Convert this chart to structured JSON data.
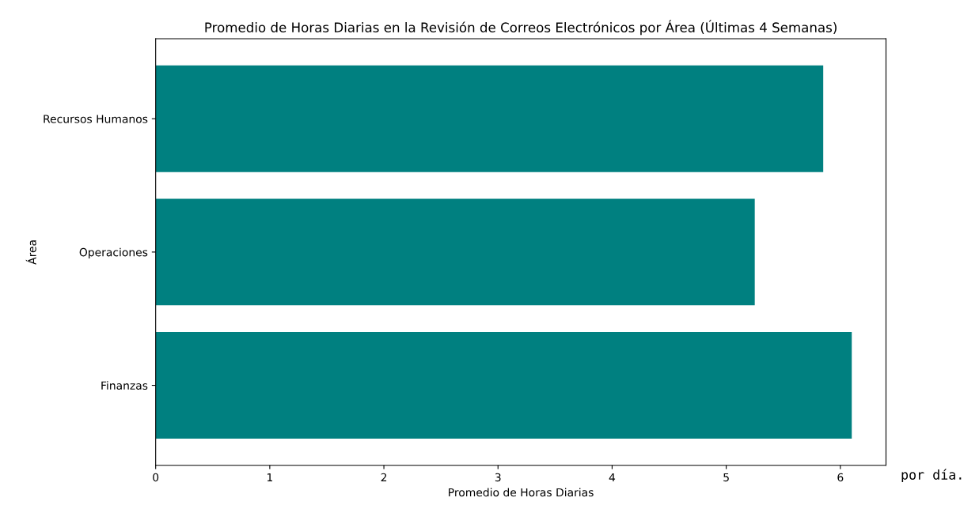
{
  "chart_data": {
    "type": "bar",
    "orientation": "horizontal",
    "title": "Promedio de Horas Diarias en la Revisión de Correos Electrónicos por Área (Últimas 4 Semanas)",
    "xlabel": "Promedio de Horas Diarias",
    "ylabel": "Área",
    "categories": [
      "Recursos Humanos",
      "Operaciones",
      "Finanzas"
    ],
    "values": [
      5.85,
      5.25,
      6.1
    ],
    "color": "#008080",
    "xlim": [
      0,
      6.4
    ],
    "xticks": [
      0,
      1,
      2,
      3,
      4,
      5,
      6
    ],
    "grid": false,
    "annotations": [
      "por día."
    ]
  }
}
